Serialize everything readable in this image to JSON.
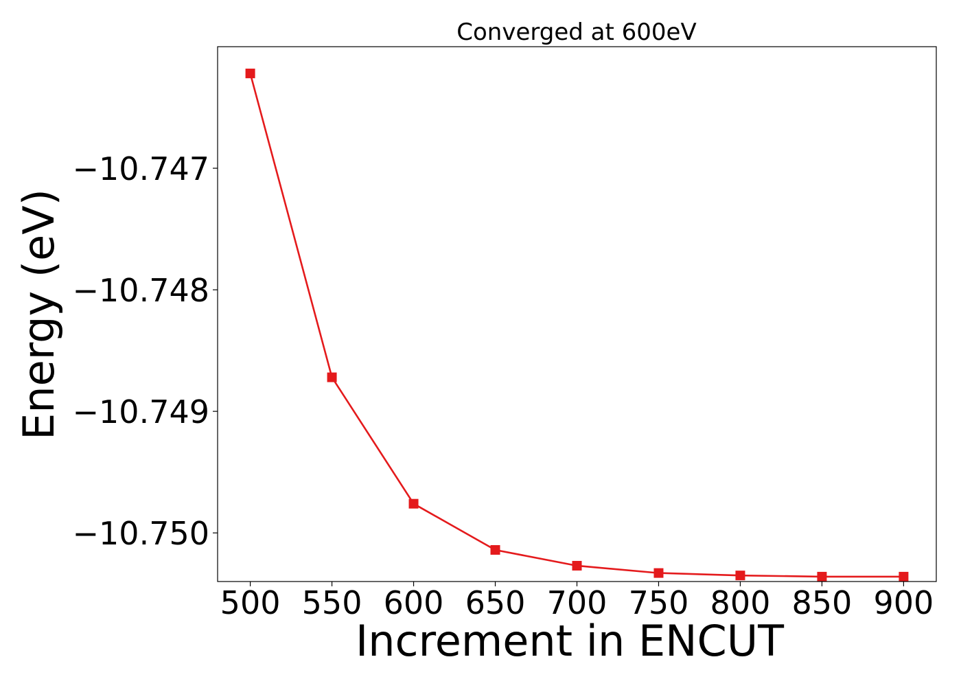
{
  "chart_data": {
    "type": "line",
    "title": "Converged at 600eV",
    "xlabel": "Increment in ENCUT",
    "ylabel": "Energy (eV)",
    "x": [
      500,
      550,
      600,
      650,
      700,
      750,
      800,
      850,
      900
    ],
    "series": [
      {
        "values": [
          -10.74622,
          -10.74872,
          -10.74976,
          -10.75014,
          -10.75027,
          -10.75033,
          -10.75035,
          -10.75036,
          -10.75036
        ],
        "color": "#e41a1c",
        "marker": "square"
      }
    ],
    "xticks": [
      500,
      550,
      600,
      650,
      700,
      750,
      800,
      850,
      900
    ],
    "xtick_labels": [
      "500",
      "550",
      "600",
      "650",
      "700",
      "750",
      "800",
      "850",
      "900"
    ],
    "yticks": [
      -10.747,
      -10.748,
      -10.749,
      -10.75
    ],
    "ytick_labels": [
      "−10.747",
      "−10.748",
      "−10.749",
      "−10.750"
    ],
    "xlim": [
      480,
      920
    ],
    "ylim": [
      -10.7504,
      -10.746
    ],
    "grid": false,
    "legend": "none"
  }
}
